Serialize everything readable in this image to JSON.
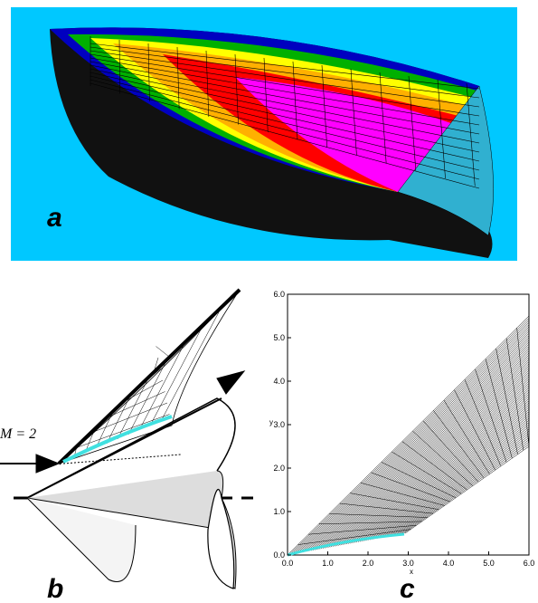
{
  "panel_a": {
    "label": "a"
  },
  "panel_b": {
    "label": "b",
    "annotation": "M = 2"
  },
  "panel_c": {
    "label": "c",
    "xlabel": "x",
    "ylabel": "y",
    "xlim": [
      0,
      6
    ],
    "ylim": [
      0,
      6
    ],
    "xticks": [
      {
        "value": 0,
        "label": "0.0"
      },
      {
        "value": 1,
        "label": "1.0"
      },
      {
        "value": 2,
        "label": "2.0"
      },
      {
        "value": 3,
        "label": "3.0"
      },
      {
        "value": 4,
        "label": "4.0"
      },
      {
        "value": 5,
        "label": "5.0"
      },
      {
        "value": 6,
        "label": "6.0"
      }
    ],
    "yticks": [
      {
        "value": 0,
        "label": "0.0"
      },
      {
        "value": 1,
        "label": "1.0"
      },
      {
        "value": 2,
        "label": "2.0"
      },
      {
        "value": 3,
        "label": "3.0"
      },
      {
        "value": 4,
        "label": "4.0"
      },
      {
        "value": 5,
        "label": "5.0"
      },
      {
        "value": 6,
        "label": "6.0"
      }
    ]
  }
}
